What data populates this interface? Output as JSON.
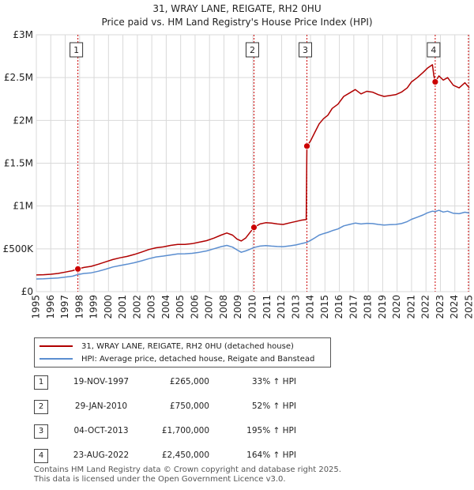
{
  "chart_data": {
    "type": "line",
    "title": "31, WRAY LANE, REIGATE, RH2 0HU",
    "subtitle": "Price paid vs. HM Land Registry's House Price Index (HPI)",
    "ylim": [
      0,
      3000000
    ],
    "xlim": [
      1995,
      2025
    ],
    "y_ticks": [
      {
        "value": 0,
        "label": "£0"
      },
      {
        "value": 500000,
        "label": "£500K"
      },
      {
        "value": 1000000,
        "label": "£1M"
      },
      {
        "value": 1500000,
        "label": "£1.5M"
      },
      {
        "value": 2000000,
        "label": "£2M"
      },
      {
        "value": 2500000,
        "label": "£2.5M"
      },
      {
        "value": 3000000,
        "label": "£3M"
      }
    ],
    "x_ticks": [
      "1995",
      "1996",
      "1997",
      "1998",
      "1999",
      "2000",
      "2001",
      "2002",
      "2003",
      "2004",
      "2005",
      "2006",
      "2007",
      "2008",
      "2009",
      "2010",
      "2011",
      "2012",
      "2013",
      "2014",
      "2015",
      "2016",
      "2017",
      "2018",
      "2019",
      "2020",
      "2021",
      "2022",
      "2023",
      "2024",
      "2025"
    ],
    "grid": true,
    "series": [
      {
        "name": "31, WRAY LANE, REIGATE, RH2 0HU (detached house)",
        "color": "#b00000",
        "points": [
          [
            1995.0,
            195000
          ],
          [
            1995.5,
            198000
          ],
          [
            1996.0,
            203000
          ],
          [
            1996.5,
            212000
          ],
          [
            1997.0,
            228000
          ],
          [
            1997.5,
            245000
          ],
          [
            1997.88,
            265000
          ],
          [
            1998.3,
            282000
          ],
          [
            1998.8,
            295000
          ],
          [
            1999.3,
            320000
          ],
          [
            1999.8,
            348000
          ],
          [
            2000.3,
            375000
          ],
          [
            2000.8,
            395000
          ],
          [
            2001.3,
            412000
          ],
          [
            2001.8,
            435000
          ],
          [
            2002.3,
            462000
          ],
          [
            2002.8,
            492000
          ],
          [
            2003.3,
            512000
          ],
          [
            2003.8,
            522000
          ],
          [
            2004.3,
            540000
          ],
          [
            2004.8,
            552000
          ],
          [
            2005.3,
            552000
          ],
          [
            2005.8,
            560000
          ],
          [
            2006.3,
            578000
          ],
          [
            2006.8,
            595000
          ],
          [
            2007.3,
            625000
          ],
          [
            2007.8,
            660000
          ],
          [
            2008.2,
            685000
          ],
          [
            2008.6,
            660000
          ],
          [
            2008.9,
            615000
          ],
          [
            2009.2,
            592000
          ],
          [
            2009.5,
            625000
          ],
          [
            2009.8,
            690000
          ],
          [
            2010.08,
            750000
          ],
          [
            2010.5,
            790000
          ],
          [
            2010.9,
            805000
          ],
          [
            2011.3,
            800000
          ],
          [
            2011.7,
            790000
          ],
          [
            2012.1,
            785000
          ],
          [
            2012.6,
            805000
          ],
          [
            2013.0,
            820000
          ],
          [
            2013.4,
            835000
          ],
          [
            2013.7,
            842000
          ],
          [
            2013.75,
            1700000
          ],
          [
            2014.0,
            1760000
          ],
          [
            2014.3,
            1860000
          ],
          [
            2014.6,
            1960000
          ],
          [
            2014.9,
            2020000
          ],
          [
            2015.2,
            2060000
          ],
          [
            2015.5,
            2140000
          ],
          [
            2015.9,
            2190000
          ],
          [
            2016.3,
            2280000
          ],
          [
            2016.7,
            2320000
          ],
          [
            2017.1,
            2360000
          ],
          [
            2017.5,
            2310000
          ],
          [
            2017.9,
            2340000
          ],
          [
            2018.3,
            2330000
          ],
          [
            2018.7,
            2300000
          ],
          [
            2019.1,
            2280000
          ],
          [
            2019.5,
            2290000
          ],
          [
            2019.9,
            2300000
          ],
          [
            2020.3,
            2330000
          ],
          [
            2020.7,
            2380000
          ],
          [
            2021.0,
            2450000
          ],
          [
            2021.4,
            2500000
          ],
          [
            2021.8,
            2560000
          ],
          [
            2022.1,
            2610000
          ],
          [
            2022.45,
            2650000
          ],
          [
            2022.55,
            2520000
          ],
          [
            2022.64,
            2450000
          ],
          [
            2022.9,
            2520000
          ],
          [
            2023.2,
            2470000
          ],
          [
            2023.5,
            2500000
          ],
          [
            2023.9,
            2410000
          ],
          [
            2024.3,
            2380000
          ],
          [
            2024.7,
            2440000
          ],
          [
            2025.0,
            2380000
          ]
        ]
      },
      {
        "name": "HPI: Average price, detached house, Reigate and Banstead",
        "color": "#5b8ed0",
        "points": [
          [
            1995.0,
            148000
          ],
          [
            1995.5,
            150000
          ],
          [
            1996.0,
            154000
          ],
          [
            1996.5,
            160000
          ],
          [
            1997.0,
            170000
          ],
          [
            1997.5,
            180000
          ],
          [
            1997.88,
            199000
          ],
          [
            1998.3,
            212000
          ],
          [
            1998.8,
            220000
          ],
          [
            1999.3,
            238000
          ],
          [
            1999.8,
            262000
          ],
          [
            2000.3,
            288000
          ],
          [
            2000.8,
            305000
          ],
          [
            2001.3,
            320000
          ],
          [
            2001.8,
            338000
          ],
          [
            2002.3,
            360000
          ],
          [
            2002.8,
            385000
          ],
          [
            2003.3,
            405000
          ],
          [
            2003.8,
            415000
          ],
          [
            2004.3,
            428000
          ],
          [
            2004.8,
            440000
          ],
          [
            2005.3,
            442000
          ],
          [
            2005.8,
            448000
          ],
          [
            2006.3,
            460000
          ],
          [
            2006.8,
            475000
          ],
          [
            2007.3,
            500000
          ],
          [
            2007.8,
            525000
          ],
          [
            2008.2,
            540000
          ],
          [
            2008.6,
            520000
          ],
          [
            2008.9,
            488000
          ],
          [
            2009.2,
            460000
          ],
          [
            2009.5,
            475000
          ],
          [
            2009.8,
            495000
          ],
          [
            2010.08,
            515000
          ],
          [
            2010.5,
            532000
          ],
          [
            2010.9,
            538000
          ],
          [
            2011.3,
            532000
          ],
          [
            2011.7,
            527000
          ],
          [
            2012.1,
            525000
          ],
          [
            2012.6,
            535000
          ],
          [
            2013.0,
            546000
          ],
          [
            2013.4,
            562000
          ],
          [
            2013.75,
            576000
          ],
          [
            2014.0,
            598000
          ],
          [
            2014.3,
            628000
          ],
          [
            2014.6,
            660000
          ],
          [
            2014.9,
            678000
          ],
          [
            2015.2,
            692000
          ],
          [
            2015.5,
            712000
          ],
          [
            2015.9,
            732000
          ],
          [
            2016.3,
            768000
          ],
          [
            2016.7,
            785000
          ],
          [
            2017.1,
            800000
          ],
          [
            2017.5,
            790000
          ],
          [
            2017.9,
            798000
          ],
          [
            2018.3,
            795000
          ],
          [
            2018.7,
            785000
          ],
          [
            2019.1,
            778000
          ],
          [
            2019.5,
            782000
          ],
          [
            2019.9,
            785000
          ],
          [
            2020.3,
            795000
          ],
          [
            2020.7,
            818000
          ],
          [
            2021.0,
            845000
          ],
          [
            2021.4,
            870000
          ],
          [
            2021.8,
            895000
          ],
          [
            2022.1,
            920000
          ],
          [
            2022.45,
            940000
          ],
          [
            2022.64,
            935000
          ],
          [
            2022.9,
            950000
          ],
          [
            2023.2,
            930000
          ],
          [
            2023.5,
            940000
          ],
          [
            2023.9,
            915000
          ],
          [
            2024.3,
            910000
          ],
          [
            2024.7,
            928000
          ],
          [
            2025.0,
            918000
          ]
        ]
      }
    ],
    "transactions": [
      {
        "num": "1",
        "x": 1997.88,
        "price": 265000,
        "date": "19-NOV-1997",
        "price_label": "£265,000",
        "hpi": "33% ↑ HPI"
      },
      {
        "num": "2",
        "x": 2010.08,
        "price": 750000,
        "date": "29-JAN-2010",
        "price_label": "£750,000",
        "hpi": "52% ↑ HPI"
      },
      {
        "num": "3",
        "x": 2013.75,
        "price": 1700000,
        "date": "04-OCT-2013",
        "price_label": "£1,700,000",
        "hpi": "195% ↑ HPI"
      },
      {
        "num": "4",
        "x": 2022.64,
        "price": 2450000,
        "date": "23-AUG-2022",
        "price_label": "£2,450,000",
        "hpi": "164% ↑ HPI"
      }
    ],
    "sale_marker_color": "#cc0000",
    "hpi_color": "#5b8ed0",
    "projection_marker_x": 2025.0
  },
  "legend": {
    "property_label": "31, WRAY LANE, REIGATE, RH2 0HU (detached house)",
    "hpi_label": "HPI: Average price, detached house, Reigate and Banstead"
  },
  "footer": {
    "line1": "Contains HM Land Registry data © Crown copyright and database right 2025.",
    "line2": "This data is licensed under the Open Government Licence v3.0."
  }
}
